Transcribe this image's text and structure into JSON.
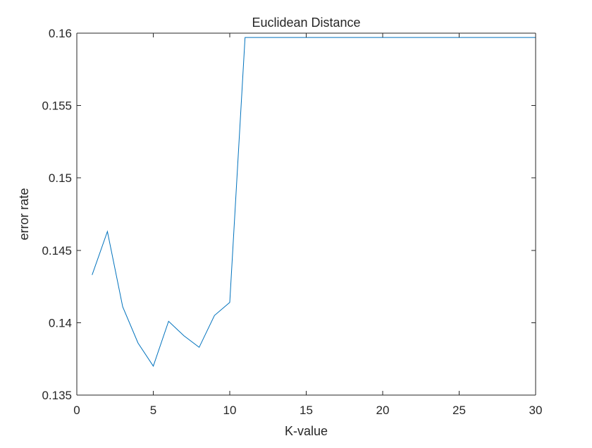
{
  "chart_data": {
    "type": "line",
    "title": "Euclidean Distance",
    "xlabel": "K-value",
    "ylabel": "error rate",
    "xlim": [
      0,
      30
    ],
    "ylim": [
      0.135,
      0.16
    ],
    "xticks": [
      0,
      5,
      10,
      15,
      20,
      25,
      30
    ],
    "xtick_labels": [
      "0",
      "5",
      "10",
      "15",
      "20",
      "25",
      "30"
    ],
    "yticks": [
      0.135,
      0.14,
      0.145,
      0.15,
      0.155,
      0.16
    ],
    "ytick_labels": [
      "0.135",
      "0.14",
      "0.145",
      "0.15",
      "0.155",
      "0.16"
    ],
    "grid": false,
    "series": [
      {
        "color": "#0072bd",
        "x": [
          1,
          2,
          3,
          4,
          5,
          6,
          7,
          8,
          9,
          10,
          11,
          12,
          13,
          14,
          15,
          16,
          17,
          18,
          19,
          20,
          21,
          22,
          23,
          24,
          25,
          26,
          27,
          28,
          29,
          30
        ],
        "y": [
          0.1433,
          0.1463,
          0.1411,
          0.1386,
          0.137,
          0.1401,
          0.1391,
          0.1383,
          0.1405,
          0.1414,
          0.1597,
          0.1597,
          0.1597,
          0.1597,
          0.1597,
          0.1597,
          0.1597,
          0.1597,
          0.1597,
          0.1597,
          0.1597,
          0.1597,
          0.1597,
          0.1597,
          0.1597,
          0.1597,
          0.1597,
          0.1597,
          0.1597,
          0.1597
        ]
      }
    ]
  }
}
